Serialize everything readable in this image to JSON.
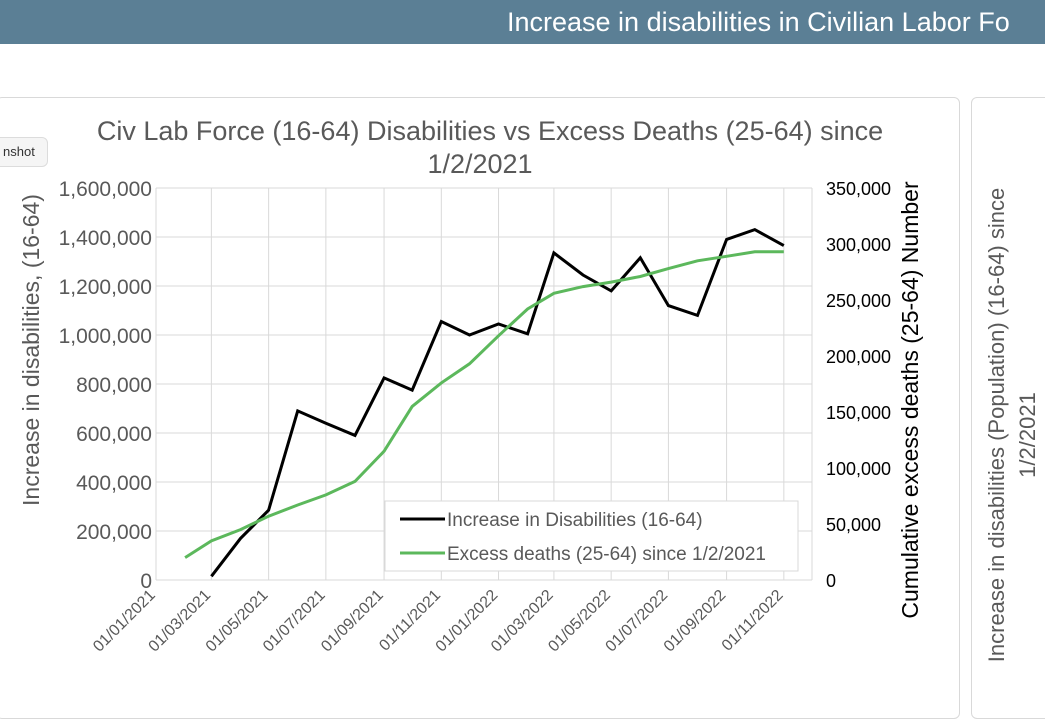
{
  "banner": {
    "title": "Increase in disabilities in Civilian Labor Fo"
  },
  "tooltip": {
    "label": "nshot"
  },
  "chart_data": {
    "type": "line",
    "title_line1": "Civ Lab Force (16-64) Disabilities vs Excess Deaths (25-64) since",
    "title_line2": "1/2/2021",
    "xlabel": "",
    "ylabel_left": "Increase in disabilities, (16-64)",
    "ylabel_right": "Cumulative excess deaths (25-64) Number",
    "ylim_left": [
      0,
      1600000
    ],
    "ylim_right": [
      0,
      350000
    ],
    "x_range": [
      "2021-01-01",
      "2022-12-01"
    ],
    "y_ticks_left": [
      "0",
      "200,000",
      "400,000",
      "600,000",
      "800,000",
      "1,000,000",
      "1,200,000",
      "1,400,000",
      "1,600,000"
    ],
    "y_ticks_right": [
      "0",
      "50,000",
      "100,000",
      "150,000",
      "200,000",
      "250,000",
      "300,000",
      "350,000"
    ],
    "x_ticks": [
      "01/01/2021",
      "01/03/2021",
      "01/05/2021",
      "01/07/2021",
      "01/09/2021",
      "01/11/2021",
      "01/01/2022",
      "01/03/2022",
      "01/05/2022",
      "01/07/2022",
      "01/09/2022",
      "01/11/2022"
    ],
    "grid": true,
    "legend_position": "bottom-right",
    "series": [
      {
        "name": "Increase in Disabilities (16-64)",
        "axis": "left",
        "color": "#000000",
        "points": [
          [
            "2021-03-01",
            15000
          ],
          [
            "2021-04-01",
            170000
          ],
          [
            "2021-05-01",
            285000
          ],
          [
            "2021-06-01",
            690000
          ],
          [
            "2021-07-01",
            640000
          ],
          [
            "2021-08-01",
            590000
          ],
          [
            "2021-09-01",
            825000
          ],
          [
            "2021-10-01",
            775000
          ],
          [
            "2021-11-01",
            1055000
          ],
          [
            "2021-12-01",
            1000000
          ],
          [
            "2022-01-01",
            1045000
          ],
          [
            "2022-02-01",
            1005000
          ],
          [
            "2022-03-01",
            1335000
          ],
          [
            "2022-04-01",
            1245000
          ],
          [
            "2022-05-01",
            1180000
          ],
          [
            "2022-06-01",
            1315000
          ],
          [
            "2022-07-01",
            1120000
          ],
          [
            "2022-08-01",
            1080000
          ],
          [
            "2022-09-01",
            1390000
          ],
          [
            "2022-10-01",
            1430000
          ],
          [
            "2022-11-01",
            1365000
          ]
        ]
      },
      {
        "name": "Excess deaths (25-64) since 1/2/2021",
        "axis": "right",
        "color": "#5cb85c",
        "points": [
          [
            "2021-02-01",
            20000
          ],
          [
            "2021-03-01",
            35000
          ],
          [
            "2021-04-01",
            45000
          ],
          [
            "2021-05-01",
            57000
          ],
          [
            "2021-06-01",
            67000
          ],
          [
            "2021-07-01",
            76000
          ],
          [
            "2021-08-01",
            88000
          ],
          [
            "2021-09-01",
            115000
          ],
          [
            "2021-10-01",
            155000
          ],
          [
            "2021-11-01",
            176000
          ],
          [
            "2021-12-01",
            193000
          ],
          [
            "2022-01-01",
            218000
          ],
          [
            "2022-02-01",
            242000
          ],
          [
            "2022-03-01",
            256000
          ],
          [
            "2022-04-01",
            262000
          ],
          [
            "2022-05-01",
            266000
          ],
          [
            "2022-06-01",
            271000
          ],
          [
            "2022-07-01",
            278000
          ],
          [
            "2022-08-01",
            285000
          ],
          [
            "2022-09-01",
            289000
          ],
          [
            "2022-10-01",
            293000
          ],
          [
            "2022-11-01",
            293000
          ]
        ]
      }
    ]
  },
  "right_chart": {
    "ylabel_line1": "Increase in disabilities (Population) (16-64) since",
    "ylabel_line2": "1/2/2021"
  }
}
